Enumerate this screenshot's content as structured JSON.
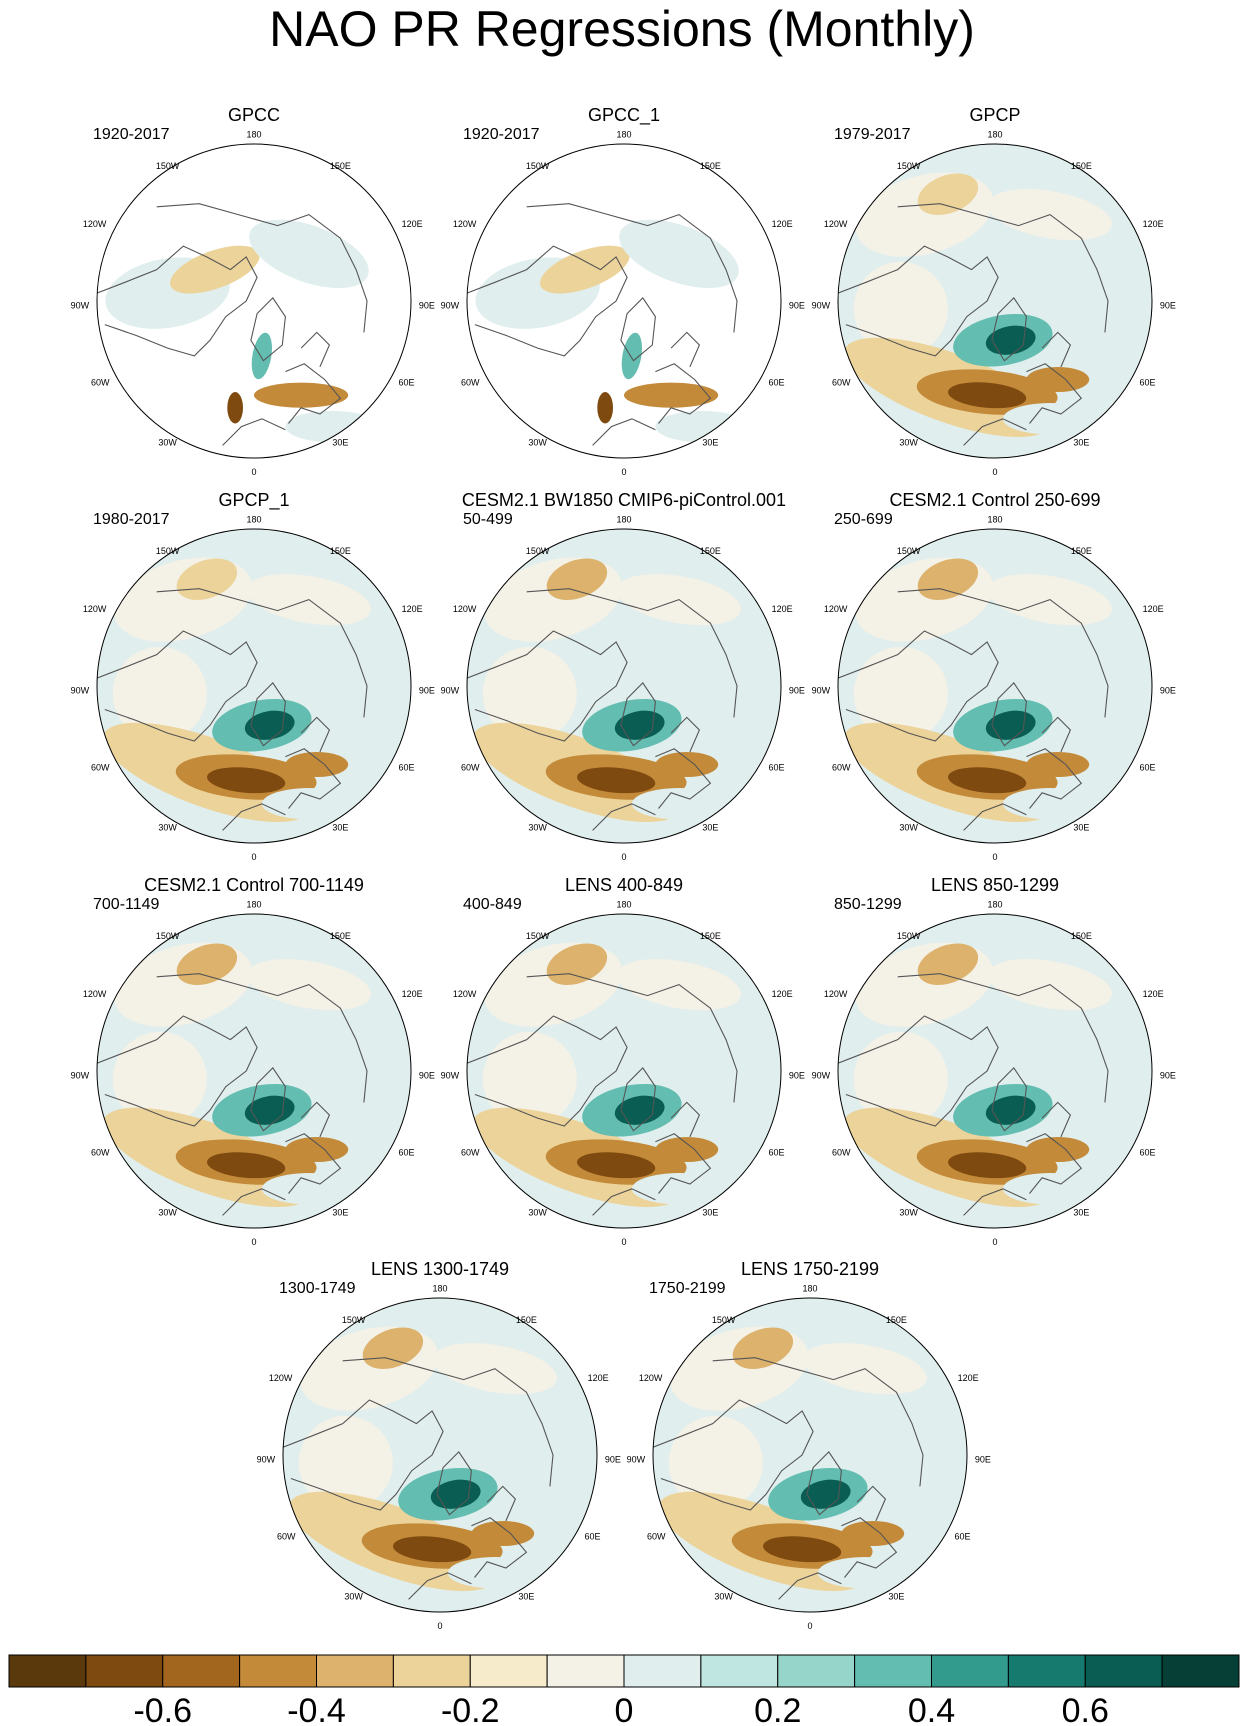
{
  "title": "NAO PR Regressions (Monthly)",
  "lon_labels": {
    "top": "180",
    "bottom": "0",
    "left_upper": "150W",
    "left_mid_upper": "120W",
    "left_mid": "90W",
    "left_mid_lower": "60W",
    "left_lower": "30W",
    "right_upper": "150E",
    "right_mid_upper": "120E",
    "right_mid": "90E",
    "right_mid_lower": "60E",
    "right_lower": "30E"
  },
  "panels": [
    {
      "title": "GPCC",
      "period": "1920-2017",
      "pattern": "obs-masked"
    },
    {
      "title": "GPCC_1",
      "period": "1920-2017",
      "pattern": "obs-masked"
    },
    {
      "title": "GPCP",
      "period": "1979-2017",
      "pattern": "obs"
    },
    {
      "title": "GPCP_1",
      "period": "1980-2017",
      "pattern": "obs"
    },
    {
      "title": "CESM2.1 BW1850 CMIP6-piControl.001",
      "period": "50-499",
      "pattern": "model"
    },
    {
      "title": "CESM2.1 Control 250-699",
      "period": "250-699",
      "pattern": "model"
    },
    {
      "title": "CESM2.1 Control 700-1149",
      "period": "700-1149",
      "pattern": "model"
    },
    {
      "title": "LENS 400-849",
      "period": "400-849",
      "pattern": "model"
    },
    {
      "title": "LENS 850-1299",
      "period": "850-1299",
      "pattern": "model"
    },
    {
      "title": "LENS 1300-1749",
      "period": "1300-1749",
      "pattern": "model"
    },
    {
      "title": "LENS 1750-2199",
      "period": "1750-2199",
      "pattern": "model"
    }
  ],
  "colorbar": {
    "colors": [
      "#5a3a0c",
      "#7f4a10",
      "#a3661f",
      "#c38a3a",
      "#dcb26c",
      "#ecd39a",
      "#f6ebcb",
      "#f4f1e7",
      "#e0eeee",
      "#c0e6e1",
      "#95d5ca",
      "#63bdb0",
      "#339b8d",
      "#177a6e",
      "#0a5d52",
      "#053f36"
    ],
    "tick_labels": [
      "-0.6",
      "-0.4",
      "-0.2",
      "0",
      "0.2",
      "0.4",
      "0.6"
    ]
  },
  "colors": {
    "dry_strong": "#7f4a10",
    "dry_mid": "#c38a3a",
    "dry_weak": "#ecd39a",
    "neutral": "#f4f1e7",
    "wet_weak": "#e0eeee",
    "wet_mid": "#63bdb0",
    "wet_strong": "#0a5d52",
    "coast": "#555555"
  }
}
